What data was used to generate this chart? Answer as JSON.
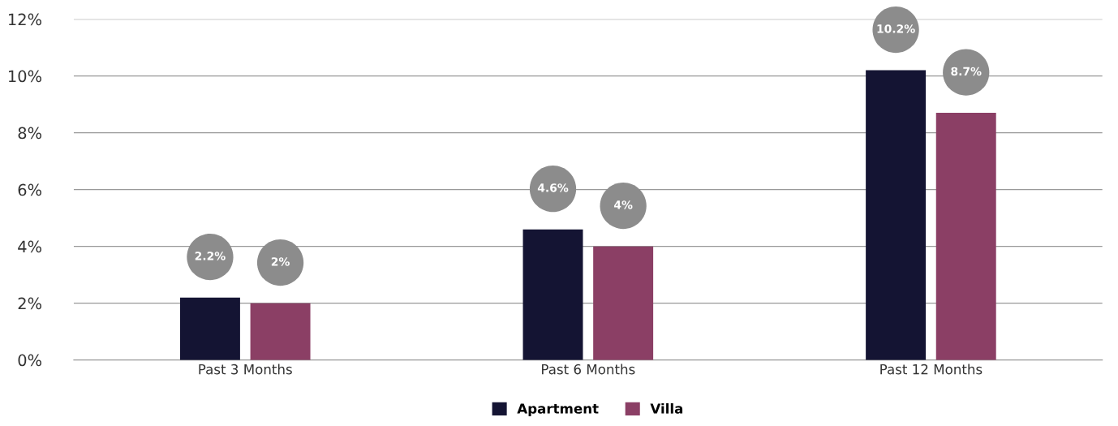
{
  "chart_data": {
    "type": "bar",
    "categories": [
      "Past 3 Months",
      "Past 6 Months",
      "Past 12 Months"
    ],
    "series": [
      {
        "name": "Apartment",
        "color": "#141433",
        "values": [
          2.2,
          4.6,
          10.2
        ]
      },
      {
        "name": "Villa",
        "color": "#8b3f65",
        "values": [
          2,
          4,
          8.7
        ]
      }
    ],
    "ylim": [
      0,
      12
    ],
    "yticks": [
      {
        "value": 0,
        "label": "0%"
      },
      {
        "value": 2,
        "label": "2%"
      },
      {
        "value": 4,
        "label": "4%"
      },
      {
        "value": 6,
        "label": "6%"
      },
      {
        "value": 8,
        "label": "8%"
      },
      {
        "value": 10,
        "label": "10%"
      },
      {
        "value": 12,
        "label": "12%"
      }
    ],
    "value_labels": [
      [
        "2.2%",
        "4.6%",
        "10.2%"
      ],
      [
        "2%",
        "4%",
        "8.7%"
      ]
    ],
    "grid": "y",
    "legend": "bottom"
  }
}
